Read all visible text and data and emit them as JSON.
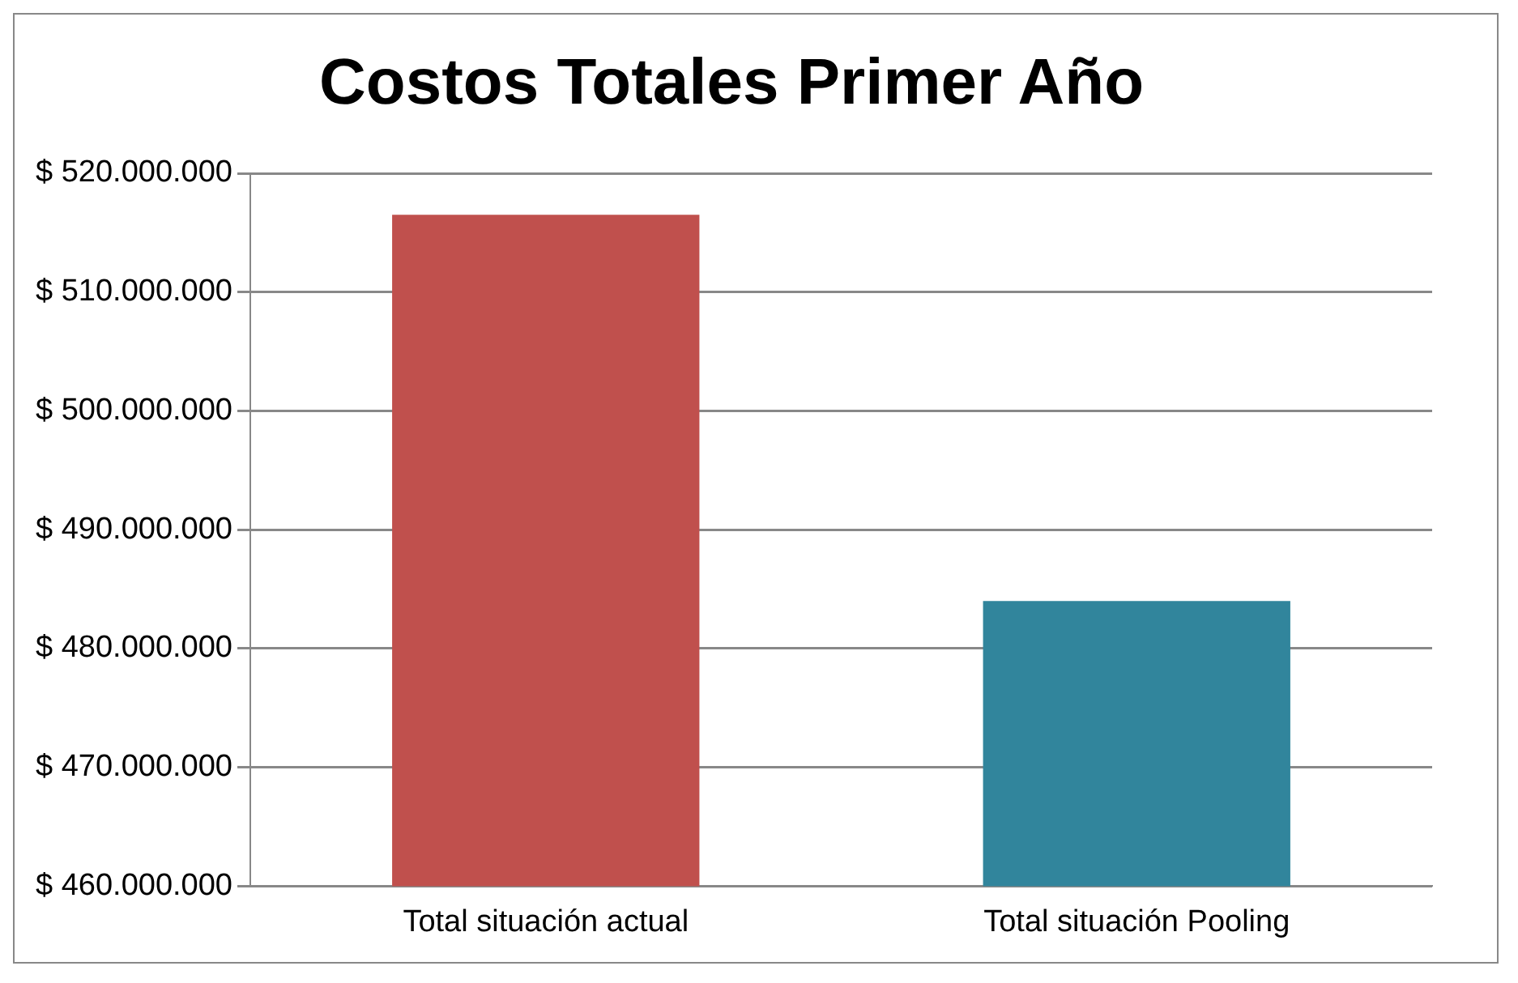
{
  "chart_data": {
    "type": "bar",
    "title": "Costos Totales Primer Año",
    "categories": [
      "Total situación actual",
      "Total situación Pooling"
    ],
    "values": [
      516500000,
      484000000
    ],
    "colors": [
      "#c0504d",
      "#31859c"
    ],
    "ylim": [
      460000000,
      520000000
    ],
    "yticks": [
      {
        "value": 460000000,
        "label": "$ 460.000.000"
      },
      {
        "value": 470000000,
        "label": "$ 470.000.000"
      },
      {
        "value": 480000000,
        "label": "$ 480.000.000"
      },
      {
        "value": 490000000,
        "label": "$ 490.000.000"
      },
      {
        "value": 500000000,
        "label": "$ 500.000.000"
      },
      {
        "value": 510000000,
        "label": "$ 510.000.000"
      },
      {
        "value": 520000000,
        "label": "$ 520.000.000"
      }
    ],
    "grid": "y",
    "legend": false
  }
}
